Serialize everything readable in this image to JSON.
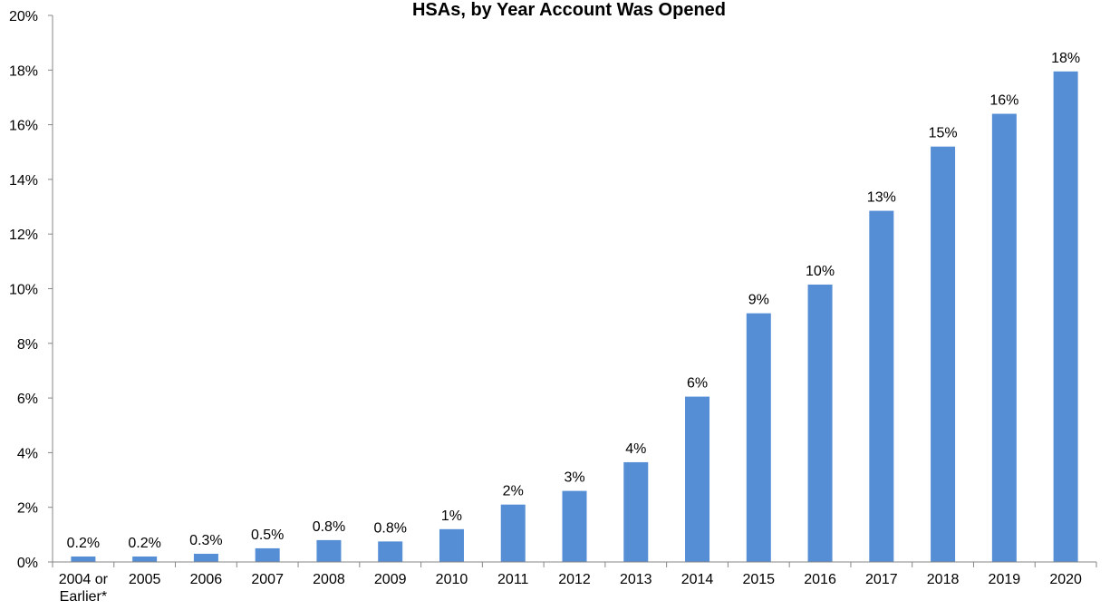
{
  "chart_data": {
    "type": "bar",
    "title": "HSAs, by Year Account Was Opened",
    "xlabel": "",
    "ylabel": "",
    "categories": [
      "2004 or Earlier*",
      "2005",
      "2006",
      "2007",
      "2008",
      "2009",
      "2010",
      "2011",
      "2012",
      "2013",
      "2014",
      "2015",
      "2016",
      "2017",
      "2018",
      "2019",
      "2020"
    ],
    "category_lines": [
      [
        "2004 or",
        "Earlier*"
      ],
      [
        "2005"
      ],
      [
        "2006"
      ],
      [
        "2007"
      ],
      [
        "2008"
      ],
      [
        "2009"
      ],
      [
        "2010"
      ],
      [
        "2011"
      ],
      [
        "2012"
      ],
      [
        "2013"
      ],
      [
        "2014"
      ],
      [
        "2015"
      ],
      [
        "2016"
      ],
      [
        "2017"
      ],
      [
        "2018"
      ],
      [
        "2019"
      ],
      [
        "2020"
      ]
    ],
    "values": [
      0.2,
      0.2,
      0.3,
      0.5,
      0.8,
      0.75,
      1.2,
      2.1,
      2.6,
      3.65,
      6.05,
      9.1,
      10.15,
      12.85,
      15.2,
      16.4,
      17.95
    ],
    "data_labels": [
      "0.2%",
      "0.2%",
      "0.3%",
      "0.5%",
      "0.8%",
      "0.8%",
      "1%",
      "2%",
      "3%",
      "4%",
      "6%",
      "9%",
      "10%",
      "13%",
      "15%",
      "16%",
      "18%"
    ],
    "ylim": [
      0,
      20
    ],
    "yticks": [
      0,
      2,
      4,
      6,
      8,
      10,
      12,
      14,
      16,
      18,
      20
    ],
    "ytick_labels": [
      "0%",
      "2%",
      "4%",
      "6%",
      "8%",
      "10%",
      "12%",
      "14%",
      "16%",
      "18%",
      "20%"
    ],
    "grid": false,
    "legend": "none",
    "colors": {
      "bar": "#558ed5",
      "axis": "#868686"
    }
  }
}
